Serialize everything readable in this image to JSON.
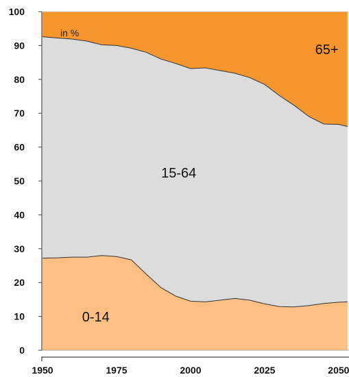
{
  "chart_data": {
    "type": "area",
    "unit_label": "in %",
    "x": [
      1950,
      1955,
      1960,
      1965,
      1970,
      1975,
      1980,
      1985,
      1990,
      1995,
      2000,
      2005,
      2010,
      2015,
      2020,
      2025,
      2030,
      2035,
      2040,
      2045,
      2050,
      2053
    ],
    "series": [
      {
        "name": "0-14",
        "values": [
          27.2,
          27.3,
          27.5,
          27.5,
          28.0,
          27.7,
          26.7,
          22.5,
          18.5,
          16.0,
          14.5,
          14.3,
          14.8,
          15.3,
          14.8,
          13.7,
          12.9,
          12.8,
          13.2,
          13.8,
          14.2,
          14.3
        ]
      },
      {
        "name": "15-64",
        "values": [
          65.4,
          64.9,
          64.4,
          63.8,
          62.2,
          62.3,
          62.5,
          65.5,
          67.5,
          68.7,
          68.7,
          69.1,
          67.8,
          66.5,
          65.7,
          64.8,
          62.3,
          59.5,
          55.8,
          53.0,
          52.5,
          51.8
        ]
      },
      {
        "name": "65+",
        "values": [
          7.4,
          7.8,
          8.1,
          8.7,
          9.8,
          10.0,
          10.8,
          12.0,
          14.0,
          15.3,
          16.8,
          16.6,
          17.4,
          18.2,
          19.5,
          21.5,
          24.8,
          27.7,
          31.0,
          33.2,
          33.3,
          33.9
        ]
      }
    ],
    "x_ticks": [
      "1950",
      "1975",
      "2000",
      "2025",
      "2050"
    ],
    "y_ticks": [
      "0",
      "10",
      "20",
      "30",
      "40",
      "50",
      "60",
      "70",
      "80",
      "90",
      "100"
    ],
    "ylim": [
      0,
      100
    ],
    "colors": {
      "0-14": "#fdbf82",
      "15-64": "#dcdcdc",
      "65+": "#f7962d",
      "boundary": "#333333",
      "axis": "#444444"
    },
    "grid": false
  }
}
